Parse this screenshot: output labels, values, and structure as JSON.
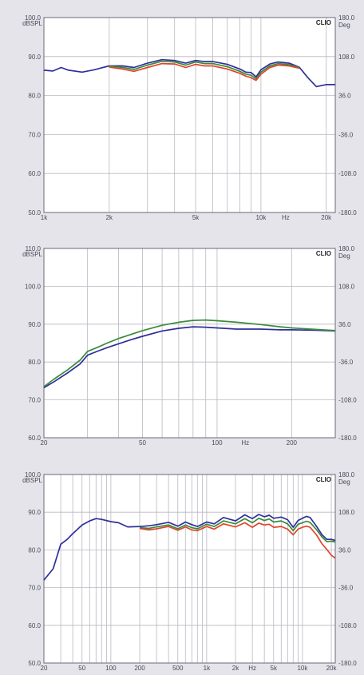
{
  "colors": {
    "page_bg": "#e4e4ea",
    "plot_bg": "#ffffff",
    "grid": "#b8b8c0",
    "series": [
      "#2e2f9a",
      "#3a8a3a",
      "#e0442a"
    ]
  },
  "chart_data": [
    {
      "type": "line",
      "brand": "CLIO",
      "ylabel": "dBSPL",
      "y2label": "Deg",
      "xunit": "Hz",
      "xscale": "log",
      "xlim": [
        1000,
        22000
      ],
      "ylim": [
        50,
        100
      ],
      "y2lim": [
        -180,
        180
      ],
      "yticks": [
        50,
        60,
        70,
        80,
        90,
        100
      ],
      "ytick_labels": [
        "50.0",
        "60.0",
        "70.0",
        "80.0",
        "90.0",
        "100.0"
      ],
      "y2ticks": [
        -180,
        -108,
        -36,
        36,
        108,
        180
      ],
      "y2tick_labels": [
        "-180.0",
        "-108.0",
        "-36.0",
        "36.0",
        "108.0",
        "180.0"
      ],
      "xtick_labels": [
        {
          "v": 1000,
          "t": "1k"
        },
        {
          "v": 2000,
          "t": "2k"
        },
        {
          "v": 5000,
          "t": "5k"
        },
        {
          "v": 10000,
          "t": "10k"
        },
        {
          "v": 13000,
          "t": "Hz"
        },
        {
          "v": 20000,
          "t": "20k"
        }
      ],
      "grid": true,
      "series": [
        {
          "x": [
            1000,
            1100,
            1200,
            1300,
            1500,
            1700,
            2000,
            2300,
            2600,
            3000,
            3500,
            4000,
            4500,
            5000,
            5500,
            6000,
            7000,
            8000,
            8500,
            9000,
            9500,
            10000,
            11000,
            12000,
            13500,
            15000,
            16500,
            18000,
            20000,
            22000
          ],
          "values": [
            86.5,
            86.3,
            87.2,
            86.5,
            86,
            86.6,
            87.6,
            87.6,
            87.2,
            88.3,
            89.2,
            89,
            88.3,
            89,
            88.7,
            88.7,
            88,
            86.8,
            86,
            85.9,
            84.8,
            86.6,
            88.1,
            88.6,
            88.3,
            87.3,
            84.5,
            82.3,
            82.8,
            82.8
          ]
        },
        {
          "x": [
            2000,
            2300,
            2600,
            3000,
            3500,
            4000,
            4500,
            5000,
            5500,
            6000,
            7000,
            8000,
            8500,
            9000,
            9500,
            10000,
            11000,
            12000,
            13500,
            15000
          ],
          "values": [
            87.6,
            87.2,
            86.7,
            87.8,
            88.8,
            88.6,
            87.8,
            88.6,
            88.2,
            88.2,
            87.4,
            86.2,
            85.5,
            85.2,
            84.3,
            86,
            87.6,
            88.2,
            87.9,
            87.2
          ]
        },
        {
          "x": [
            2000,
            2300,
            2600,
            3000,
            3500,
            4000,
            4500,
            5000,
            5500,
            6000,
            7000,
            8000,
            8500,
            9000,
            9500,
            10000,
            11000,
            12000,
            13500,
            15000
          ],
          "values": [
            87.3,
            86.8,
            86.2,
            87.2,
            88.2,
            88.1,
            87.2,
            88,
            87.6,
            87.6,
            86.8,
            85.7,
            85,
            84.6,
            83.9,
            85.5,
            87.2,
            87.8,
            87.6,
            87
          ]
        }
      ]
    },
    {
      "type": "line",
      "brand": "CLIO",
      "ylabel": "dBSPL",
      "y2label": "Deg",
      "xunit": "Hz",
      "xscale": "log",
      "xlim": [
        20,
        300
      ],
      "ylim": [
        60,
        110
      ],
      "y2lim": [
        -180,
        180
      ],
      "yticks": [
        60,
        70,
        80,
        90,
        100,
        110
      ],
      "ytick_labels": [
        "60.0",
        "70.0",
        "80.0",
        "90.0",
        "100.0",
        "110.0"
      ],
      "y2ticks": [
        -180,
        -108,
        -36,
        36,
        108,
        180
      ],
      "y2tick_labels": [
        "-180.0",
        "-108.0",
        "-36.0",
        "36.0",
        "108.0",
        "180.0"
      ],
      "xtick_labels": [
        {
          "v": 20,
          "t": "20"
        },
        {
          "v": 50,
          "t": "50"
        },
        {
          "v": 100,
          "t": "100"
        },
        {
          "v": 130,
          "t": "Hz"
        },
        {
          "v": 200,
          "t": "200"
        }
      ],
      "grid": true,
      "series": [
        {
          "x": [
            20,
            22,
            25,
            28,
            30,
            33,
            36,
            40,
            45,
            50,
            60,
            70,
            80,
            90,
            100,
            120,
            150,
            180,
            200,
            250,
            300
          ],
          "values": [
            73.2,
            74.8,
            77.2,
            79.5,
            81.8,
            82.9,
            83.8,
            84.8,
            85.9,
            86.8,
            88.2,
            88.9,
            89.3,
            89.2,
            89,
            88.7,
            88.7,
            88.5,
            88.5,
            88.4,
            88.2
          ]
        },
        {
          "x": [
            20,
            22,
            25,
            28,
            30,
            33,
            36,
            40,
            45,
            50,
            60,
            70,
            80,
            90,
            100,
            120,
            150,
            180,
            200,
            250,
            300
          ],
          "values": [
            73.5,
            75.5,
            78,
            80.5,
            82.8,
            83.9,
            85,
            86.2,
            87.3,
            88.3,
            89.7,
            90.5,
            91,
            91.1,
            90.9,
            90.5,
            89.9,
            89.3,
            89,
            88.6,
            88.3
          ]
        }
      ]
    },
    {
      "type": "line",
      "brand": "CLIO",
      "ylabel": "dBSPL",
      "y2label": "Deg",
      "xunit": "Hz",
      "xscale": "log",
      "xlim": [
        20,
        22000
      ],
      "ylim": [
        50,
        100
      ],
      "y2lim": [
        -180,
        180
      ],
      "yticks": [
        50,
        60,
        70,
        80,
        90,
        100
      ],
      "ytick_labels": [
        "50.0",
        "60.0",
        "70.0",
        "80.0",
        "90.0",
        "100.0"
      ],
      "y2ticks": [
        -180,
        -108,
        -36,
        36,
        108,
        180
      ],
      "y2tick_labels": [
        "-180.0",
        "-108.0",
        "-36.0",
        "36.0",
        "108.0",
        "180.0"
      ],
      "xtick_labels": [
        {
          "v": 20,
          "t": "20"
        },
        {
          "v": 50,
          "t": "50"
        },
        {
          "v": 100,
          "t": "100"
        },
        {
          "v": 200,
          "t": "200"
        },
        {
          "v": 500,
          "t": "500"
        },
        {
          "v": 1000,
          "t": "1k"
        },
        {
          "v": 2000,
          "t": "2k"
        },
        {
          "v": 3000,
          "t": "Hz"
        },
        {
          "v": 5000,
          "t": "5k"
        },
        {
          "v": 10000,
          "t": "10k"
        },
        {
          "v": 20000,
          "t": "20k"
        }
      ],
      "grid": true,
      "series": [
        {
          "x": [
            20,
            25,
            30,
            35,
            40,
            50,
            60,
            70,
            80,
            100,
            120,
            150,
            200,
            250,
            300,
            400,
            500,
            600,
            700,
            800,
            1000,
            1200,
            1500,
            2000,
            2500,
            3000,
            3500,
            4000,
            4500,
            5000,
            6000,
            7000,
            8000,
            9000,
            10000,
            11000,
            12000,
            14000,
            16000,
            18000,
            20000,
            22000
          ],
          "values": [
            72,
            75,
            81.5,
            82.8,
            84.3,
            86.6,
            87.7,
            88.3,
            88.1,
            87.5,
            87.2,
            86.1,
            86.2,
            86.4,
            86.7,
            87.3,
            86.3,
            87.4,
            86.7,
            86.2,
            87.4,
            86.9,
            88.6,
            87.7,
            89.3,
            88.3,
            89.4,
            88.8,
            89.2,
            88.4,
            88.7,
            88,
            86,
            87.8,
            88.4,
            88.9,
            88.6,
            86.3,
            84,
            82.8,
            82.8,
            82.5
          ]
        },
        {
          "x": [
            200,
            250,
            300,
            400,
            500,
            600,
            700,
            800,
            1000,
            1200,
            1500,
            2000,
            2500,
            3000,
            3500,
            4000,
            4500,
            5000,
            6000,
            7000,
            8000,
            9000,
            10000,
            11000,
            12000,
            14000,
            16000,
            18000,
            20000,
            22000
          ],
          "values": [
            85.9,
            85.7,
            86.1,
            86.6,
            85.6,
            86.6,
            85.9,
            85.6,
            86.8,
            86.2,
            87.7,
            86.9,
            88.3,
            87.2,
            88.4,
            87.8,
            88.2,
            87.4,
            87.7,
            86.9,
            85.1,
            86.8,
            87.2,
            87.6,
            87.3,
            85.4,
            83.4,
            82.2,
            82.3,
            82.1
          ]
        },
        {
          "x": [
            200,
            250,
            300,
            400,
            500,
            600,
            700,
            800,
            1000,
            1200,
            1500,
            2000,
            2500,
            3000,
            3500,
            4000,
            4500,
            5000,
            6000,
            7000,
            8000,
            9000,
            10000,
            11000,
            12000,
            14000,
            16000,
            18000,
            20000,
            22000
          ],
          "values": [
            85.7,
            85.3,
            85.6,
            86.2,
            85.2,
            86.1,
            85.3,
            85.1,
            86.2,
            85.5,
            86.9,
            86.1,
            87.2,
            86,
            87.1,
            86.6,
            86.8,
            86,
            86.2,
            85.5,
            84,
            85.5,
            86,
            86.3,
            86,
            84,
            81.6,
            80.1,
            78.6,
            77.8
          ]
        }
      ]
    }
  ]
}
